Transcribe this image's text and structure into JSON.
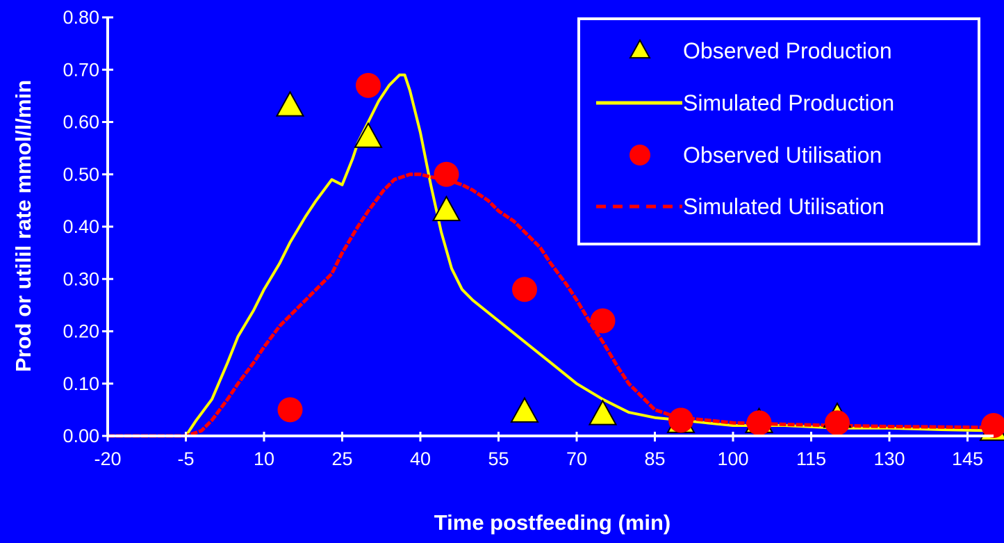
{
  "chart_data": {
    "type": "line",
    "title": "",
    "xlabel": "Time postfeeding (min)",
    "ylabel": "Prod or utilil rate mmol/l/min",
    "xlim": [
      -20,
      150
    ],
    "ylim": [
      0,
      0.8
    ],
    "x_ticks": [
      "-20",
      "-5",
      "10",
      "25",
      "40",
      "55",
      "70",
      "85",
      "100",
      "115",
      "130",
      "145"
    ],
    "y_ticks": [
      "0.00",
      "0.10",
      "0.20",
      "0.30",
      "0.40",
      "0.50",
      "0.60",
      "0.70",
      "0.80"
    ],
    "grid": false,
    "legend_position": "top-right",
    "colors": {
      "background": "#0000ff",
      "production": "#ffff00",
      "utilisation": "#ff0000",
      "axis": "#ffffff"
    },
    "series": [
      {
        "name": "Observed Production",
        "kind": "scatter",
        "marker": "triangle",
        "x": [
          15,
          30,
          45,
          60,
          75,
          90,
          105,
          120,
          150
        ],
        "y": [
          0.63,
          0.57,
          0.43,
          0.045,
          0.04,
          0.025,
          0.025,
          0.035,
          0.01
        ]
      },
      {
        "name": "Simulated Production",
        "kind": "line",
        "style": "solid",
        "x": [
          -20,
          -5,
          -3,
          0,
          3,
          5,
          8,
          10,
          13,
          15,
          18,
          20,
          23,
          25,
          27,
          28,
          30,
          32,
          34,
          36,
          37,
          38,
          40,
          42,
          44,
          46,
          48,
          50,
          55,
          60,
          65,
          70,
          75,
          80,
          85,
          90,
          95,
          100,
          110,
          120,
          130,
          140,
          150
        ],
        "y": [
          0,
          0,
          0.03,
          0.07,
          0.14,
          0.19,
          0.24,
          0.28,
          0.33,
          0.37,
          0.42,
          0.45,
          0.49,
          0.48,
          0.53,
          0.56,
          0.6,
          0.64,
          0.67,
          0.69,
          0.69,
          0.66,
          0.58,
          0.48,
          0.39,
          0.32,
          0.28,
          0.26,
          0.22,
          0.18,
          0.14,
          0.1,
          0.07,
          0.045,
          0.035,
          0.03,
          0.025,
          0.02,
          0.02,
          0.015,
          0.015,
          0.012,
          0.01
        ]
      },
      {
        "name": "Observed Utilisation",
        "kind": "scatter",
        "marker": "circle",
        "x": [
          15,
          30,
          45,
          60,
          75,
          90,
          105,
          120,
          150
        ],
        "y": [
          0.05,
          0.67,
          0.5,
          0.28,
          0.22,
          0.03,
          0.025,
          0.025,
          0.02
        ]
      },
      {
        "name": "Simulated Utilisation",
        "kind": "line",
        "style": "dashed",
        "x": [
          -20,
          -5,
          -2,
          0,
          3,
          5,
          8,
          10,
          13,
          15,
          18,
          20,
          23,
          25,
          28,
          30,
          33,
          35,
          38,
          40,
          42,
          45,
          48,
          50,
          53,
          55,
          58,
          60,
          63,
          65,
          68,
          70,
          73,
          75,
          78,
          80,
          83,
          85,
          88,
          90,
          95,
          100,
          110,
          120,
          130,
          140,
          150
        ],
        "y": [
          0,
          0,
          0.01,
          0.03,
          0.07,
          0.1,
          0.14,
          0.17,
          0.21,
          0.23,
          0.26,
          0.28,
          0.31,
          0.35,
          0.4,
          0.43,
          0.47,
          0.49,
          0.5,
          0.5,
          0.495,
          0.49,
          0.48,
          0.47,
          0.45,
          0.43,
          0.41,
          0.39,
          0.36,
          0.33,
          0.29,
          0.26,
          0.21,
          0.18,
          0.13,
          0.1,
          0.07,
          0.05,
          0.04,
          0.035,
          0.03,
          0.025,
          0.022,
          0.02,
          0.018,
          0.017,
          0.016
        ]
      }
    ]
  }
}
